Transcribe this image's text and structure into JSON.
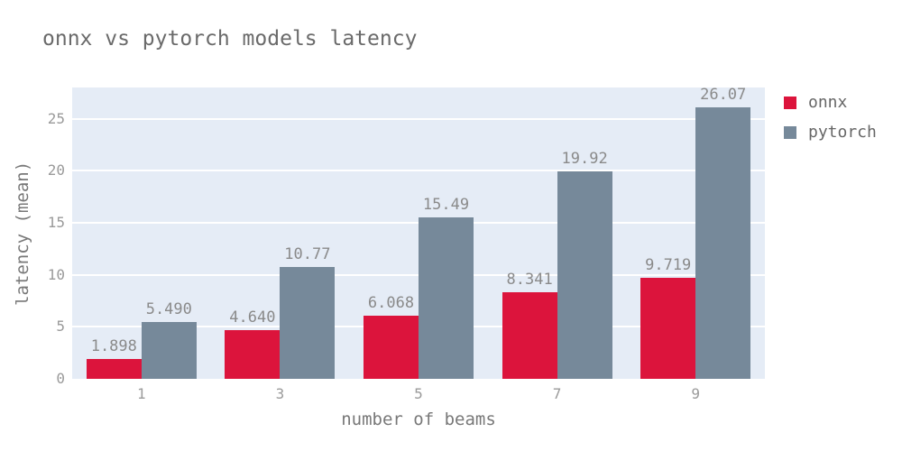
{
  "chart_data": {
    "type": "bar",
    "title": "onnx vs pytorch models latency",
    "xlabel": "number of beams",
    "ylabel": "latency (mean)",
    "categories": [
      "1",
      "3",
      "5",
      "7",
      "9"
    ],
    "series": [
      {
        "name": "onnx",
        "color": "#dc143c",
        "values": [
          1.898,
          4.64,
          6.068,
          8.341,
          9.719
        ],
        "labels": [
          "1.898",
          "4.640",
          "6.068",
          "8.341",
          "9.719"
        ]
      },
      {
        "name": "pytorch",
        "color": "#76899a",
        "values": [
          5.49,
          10.77,
          15.49,
          19.92,
          26.07
        ],
        "labels": [
          "5.490",
          "10.77",
          "15.49",
          "19.92",
          "26.07"
        ]
      }
    ],
    "ylim": [
      0,
      28
    ],
    "yticks": [
      0,
      5,
      10,
      15,
      20,
      25
    ],
    "grid": true,
    "grid_color": "#ffffff",
    "plot_bg": "#e5ecf6",
    "legend_position": "right"
  }
}
